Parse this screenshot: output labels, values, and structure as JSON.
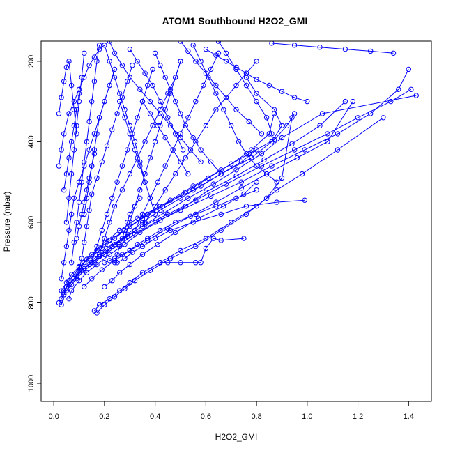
{
  "chart_data": {
    "type": "line",
    "title": "ATOM1 Southbound H2O2_GMI",
    "xlabel": "H2O2_GMI",
    "ylabel": "Pressure (mbar)",
    "xlim": [
      -0.05,
      1.49
    ],
    "ylim": [
      1045,
      150
    ],
    "y_reversed": true,
    "x_ticks": [
      0.0,
      0.2,
      0.4,
      0.6,
      0.8,
      1.0,
      1.2,
      1.4
    ],
    "x_tick_labels": [
      "0.0",
      "0.2",
      "0.4",
      "0.6",
      "0.8",
      "1.0",
      "1.2",
      "1.4"
    ],
    "y_ticks": [
      200,
      400,
      600,
      800,
      1000
    ],
    "y_tick_labels": [
      "200",
      "400",
      "600",
      "800",
      "1000"
    ],
    "grid": false,
    "legend": "none",
    "marker": "open-circle",
    "color": "#0000ff",
    "series": [
      {
        "x": [
          0.03,
          0.04,
          0.05,
          0.08,
          0.1,
          0.12,
          0.15,
          0.2,
          0.26,
          0.33,
          0.42,
          0.55,
          0.66,
          0.78,
          0.86,
          0.9,
          0.87,
          0.8,
          0.76
        ],
        "y": [
          805,
          780,
          760,
          740,
          720,
          700,
          680,
          650,
          620,
          590,
          560,
          520,
          480,
          440,
          400,
          360,
          320,
          280,
          240
        ]
      },
      {
        "x": [
          0.04,
          0.06,
          0.09,
          0.12,
          0.16,
          0.21,
          0.27,
          0.35,
          0.45,
          0.56,
          0.68,
          0.82,
          0.95,
          1.08,
          1.2,
          1.33,
          1.41
        ],
        "y": [
          770,
          755,
          735,
          715,
          690,
          665,
          640,
          610,
          580,
          545,
          505,
          460,
          420,
          380,
          340,
          300,
          270
        ]
      },
      {
        "x": [
          0.05,
          0.08,
          0.11,
          0.15,
          0.2,
          0.26,
          0.32,
          0.4,
          0.5,
          0.62,
          0.74,
          0.86,
          0.99,
          1.12,
          1.25,
          1.36,
          1.4
        ],
        "y": [
          760,
          740,
          720,
          700,
          680,
          655,
          630,
          600,
          570,
          535,
          500,
          460,
          420,
          380,
          330,
          270,
          220
        ]
      },
      {
        "x": [
          0.06,
          0.07,
          0.1,
          0.13,
          0.17,
          0.22,
          0.28,
          0.34,
          0.42,
          0.52,
          0.6,
          0.72,
          0.83,
          0.94,
          1.05,
          1.15
        ],
        "y": [
          790,
          770,
          745,
          725,
          705,
          680,
          655,
          625,
          595,
          560,
          525,
          485,
          445,
          405,
          360,
          300
        ]
      },
      {
        "x": [
          0.08,
          0.1,
          0.14,
          0.18,
          0.23,
          0.29,
          0.36,
          0.44,
          0.53,
          0.63,
          0.72,
          0.82,
          0.9,
          1.06,
          1.43
        ],
        "y": [
          740,
          725,
          705,
          685,
          660,
          635,
          605,
          575,
          540,
          505,
          470,
          430,
          390,
          330,
          285
        ]
      },
      {
        "x": [
          0.16,
          0.18,
          0.22,
          0.26,
          0.3,
          0.35,
          0.42,
          0.5,
          0.6,
          0.7,
          0.8,
          0.88,
          0.98,
          1.12,
          1.3
        ],
        "y": [
          820,
          805,
          790,
          770,
          750,
          725,
          700,
          670,
          640,
          600,
          560,
          520,
          480,
          420,
          340
        ]
      },
      {
        "x": [
          0.03,
          0.05,
          0.07,
          0.1,
          0.14,
          0.19,
          0.24,
          0.3,
          0.37,
          0.46,
          0.55,
          0.66,
          0.77,
          0.87,
          0.92,
          0.95
        ],
        "y": [
          770,
          750,
          730,
          710,
          690,
          665,
          640,
          610,
          580,
          545,
          510,
          470,
          430,
          395,
          360,
          330
        ]
      },
      {
        "x": [
          0.12,
          0.15,
          0.19,
          0.24,
          0.3,
          0.37,
          0.45,
          0.54,
          0.64,
          0.74,
          0.84,
          0.96,
          1.08,
          1.18
        ],
        "y": [
          760,
          740,
          718,
          695,
          670,
          645,
          615,
          585,
          550,
          515,
          480,
          440,
          400,
          300
        ]
      },
      {
        "x": [
          0.17,
          0.2,
          0.24,
          0.28,
          0.32,
          0.38,
          0.46,
          0.56,
          0.66,
          0.76,
          0.84,
          0.9,
          0.94
        ],
        "y": [
          825,
          805,
          785,
          765,
          745,
          720,
          690,
          660,
          620,
          580,
          540,
          490,
          340
        ]
      },
      {
        "x": [
          0.04,
          0.05,
          0.06,
          0.08,
          0.1,
          0.13,
          0.17,
          0.22,
          0.28,
          0.35,
          0.43,
          0.52,
          0.61,
          0.7,
          0.78,
          0.85,
          0.87
        ],
        "y": [
          775,
          760,
          745,
          730,
          712,
          692,
          670,
          645,
          620,
          590,
          560,
          525,
          490,
          455,
          420,
          380,
          330
        ]
      },
      {
        "x": [
          0.2,
          0.23,
          0.26,
          0.3,
          0.35,
          0.41,
          0.48,
          0.57,
          0.67,
          0.75,
          0.8
        ],
        "y": [
          760,
          745,
          725,
          705,
          680,
          655,
          625,
          590,
          560,
          530,
          500
        ]
      },
      {
        "x": [
          0.25,
          0.28,
          0.31,
          0.35,
          0.4,
          0.46,
          0.55,
          0.66,
          0.76,
          0.88,
          0.99
        ],
        "y": [
          700,
          690,
          675,
          660,
          640,
          620,
          600,
          580,
          560,
          550,
          545
        ]
      },
      {
        "x": [
          0.42,
          0.45,
          0.5,
          0.56,
          0.58,
          0.6,
          0.63,
          0.66,
          0.75
        ],
        "y": [
          700,
          700,
          700,
          700,
          700,
          665,
          640,
          645,
          640
        ]
      },
      {
        "x": [
          0.2,
          0.22,
          0.24,
          0.27,
          0.3,
          0.33,
          0.37,
          0.42,
          0.48,
          0.56,
          0.64,
          0.72,
          0.8
        ],
        "y": [
          700,
          695,
          690,
          680,
          670,
          655,
          640,
          620,
          600,
          580,
          560,
          540,
          520
        ]
      },
      {
        "x": [
          0.02,
          0.03,
          0.04,
          0.05,
          0.07,
          0.09,
          0.12,
          0.16,
          0.2,
          0.24,
          0.29,
          0.35,
          0.42,
          0.5,
          0.58,
          0.66,
          0.74,
          0.8
        ],
        "y": [
          800,
          790,
          780,
          770,
          755,
          740,
          720,
          700,
          680,
          655,
          630,
          600,
          570,
          540,
          510,
          480,
          450,
          420
        ]
      },
      {
        "x": [
          0.02,
          0.03,
          0.04,
          0.06,
          0.08,
          0.1,
          0.12,
          0.14,
          0.16,
          0.18,
          0.2,
          0.22,
          0.24,
          0.26,
          0.28,
          0.3,
          0.32,
          0.34,
          0.36
        ],
        "y": [
          460,
          420,
          380,
          330,
          300,
          270,
          240,
          210,
          190,
          170,
          160,
          200,
          240,
          280,
          320,
          360,
          400,
          450,
          500
        ]
      },
      {
        "x": [
          0.03,
          0.04,
          0.05,
          0.06,
          0.07,
          0.08,
          0.1,
          0.12,
          0.14,
          0.16,
          0.18,
          0.2,
          0.22,
          0.24
        ],
        "y": [
          740,
          700,
          660,
          620,
          580,
          540,
          500,
          460,
          420,
          380,
          340,
          300,
          260,
          220
        ]
      },
      {
        "x": [
          0.07,
          0.08,
          0.09,
          0.1,
          0.11,
          0.12,
          0.13,
          0.14,
          0.15,
          0.16,
          0.17,
          0.18
        ],
        "y": [
          700,
          650,
          600,
          550,
          500,
          450,
          400,
          350,
          300,
          250,
          200,
          160
        ]
      },
      {
        "x": [
          0.1,
          0.11,
          0.12,
          0.13,
          0.14,
          0.15,
          0.17,
          0.19,
          0.21,
          0.23,
          0.25,
          0.27,
          0.29,
          0.31
        ],
        "y": [
          720,
          690,
          650,
          610,
          570,
          530,
          490,
          450,
          410,
          370,
          330,
          290,
          250,
          210
        ]
      },
      {
        "x": [
          0.15,
          0.17,
          0.19,
          0.21,
          0.23,
          0.25,
          0.27,
          0.29,
          0.31,
          0.33,
          0.35,
          0.37,
          0.39
        ],
        "y": [
          700,
          660,
          620,
          580,
          540,
          500,
          460,
          420,
          380,
          340,
          300,
          260,
          220
        ]
      },
      {
        "x": [
          0.18,
          0.2,
          0.22,
          0.24,
          0.27,
          0.3,
          0.33,
          0.36,
          0.39,
          0.42,
          0.45,
          0.48,
          0.5
        ],
        "y": [
          680,
          640,
          600,
          560,
          520,
          480,
          440,
          400,
          360,
          320,
          280,
          240,
          200
        ]
      },
      {
        "x": [
          0.28,
          0.3,
          0.32,
          0.34,
          0.36,
          0.38,
          0.4,
          0.42,
          0.44,
          0.46,
          0.48,
          0.5
        ],
        "y": [
          640,
          600,
          560,
          520,
          480,
          440,
          400,
          360,
          320,
          280,
          240,
          200
        ]
      },
      {
        "x": [
          0.32,
          0.35,
          0.38,
          0.41,
          0.44,
          0.47,
          0.5,
          0.53,
          0.56,
          0.59,
          0.62,
          0.65
        ],
        "y": [
          620,
          580,
          540,
          500,
          460,
          420,
          380,
          340,
          300,
          260,
          220,
          180
        ]
      },
      {
        "x": [
          0.36,
          0.4,
          0.44,
          0.48,
          0.52,
          0.56,
          0.6,
          0.64,
          0.68,
          0.72,
          0.76,
          0.8
        ],
        "y": [
          600,
          560,
          520,
          480,
          440,
          400,
          360,
          320,
          290,
          260,
          230,
          200
        ]
      },
      {
        "x": [
          0.05,
          0.06,
          0.07,
          0.08,
          0.09,
          0.1,
          0.11,
          0.12
        ],
        "y": [
          600,
          540,
          480,
          420,
          360,
          300,
          240,
          180
        ]
      },
      {
        "x": [
          0.02,
          0.03,
          0.04,
          0.05,
          0.06,
          0.07,
          0.08,
          0.09
        ],
        "y": [
          330,
          290,
          250,
          215,
          200,
          260,
          320,
          380
        ]
      },
      {
        "x": [
          0.12,
          0.13,
          0.14,
          0.15,
          0.16,
          0.17,
          0.18,
          0.2,
          0.22
        ],
        "y": [
          580,
          540,
          500,
          460,
          420,
          380,
          340,
          300,
          260
        ]
      },
      {
        "x": [
          0.4,
          0.42,
          0.44,
          0.46,
          0.48,
          0.5,
          0.52,
          0.55,
          0.58,
          0.62,
          0.66
        ],
        "y": [
          180,
          210,
          240,
          270,
          300,
          330,
          360,
          390,
          420,
          450,
          480
        ]
      },
      {
        "x": [
          0.55,
          0.58,
          0.61,
          0.64,
          0.67,
          0.7,
          0.73,
          0.76,
          0.8,
          0.84,
          0.88
        ],
        "y": [
          160,
          200,
          240,
          280,
          320,
          360,
          400,
          430,
          460,
          480,
          500
        ]
      },
      {
        "x": [
          0.65,
          0.68,
          0.72,
          0.76,
          0.8,
          0.84,
          0.86
        ],
        "y": [
          150,
          180,
          220,
          260,
          300,
          340,
          380
        ]
      },
      {
        "x": [
          0.22,
          0.24,
          0.27,
          0.3,
          0.34,
          0.38,
          0.42,
          0.46,
          0.5,
          0.54,
          0.58
        ],
        "y": [
          150,
          180,
          210,
          240,
          270,
          300,
          330,
          360,
          390,
          420,
          450
        ]
      },
      {
        "x": [
          0.3,
          0.33,
          0.36,
          0.39,
          0.42,
          0.45,
          0.48,
          0.51
        ],
        "y": [
          170,
          200,
          230,
          260,
          300,
          340,
          380,
          420
        ]
      },
      {
        "x": [
          0.5,
          0.53,
          0.56,
          0.6,
          0.64,
          0.68,
          0.72,
          0.77,
          0.82
        ],
        "y": [
          150,
          175,
          200,
          230,
          260,
          290,
          320,
          350,
          380
        ]
      },
      {
        "x": [
          0.86,
          0.95,
          1.05,
          1.15,
          1.25,
          1.34
        ],
        "y": [
          155,
          160,
          165,
          170,
          175,
          180
        ]
      },
      {
        "x": [
          0.6,
          0.64,
          0.68,
          0.72,
          0.76,
          0.8,
          0.85,
          0.9,
          0.95,
          1.0
        ],
        "y": [
          170,
          185,
          200,
          215,
          230,
          245,
          260,
          275,
          290,
          300
        ]
      },
      {
        "x": [
          0.35,
          0.38,
          0.41,
          0.44,
          0.47,
          0.5,
          0.53
        ],
        "y": [
          300,
          330,
          360,
          390,
          420,
          450,
          480
        ]
      },
      {
        "x": [
          0.26,
          0.28,
          0.3,
          0.32,
          0.34,
          0.36,
          0.38,
          0.4
        ],
        "y": [
          300,
          340,
          380,
          420,
          460,
          500,
          540,
          580
        ]
      },
      {
        "x": [
          0.24,
          0.25,
          0.26,
          0.27,
          0.28,
          0.29,
          0.3,
          0.32,
          0.34
        ],
        "y": [
          700,
          680,
          660,
          640,
          620,
          600,
          580,
          560,
          540
        ]
      },
      {
        "x": [
          0.04,
          0.05,
          0.06,
          0.07,
          0.08,
          0.09,
          0.1
        ],
        "y": [
          520,
          480,
          440,
          400,
          360,
          320,
          280
        ]
      },
      {
        "x": [
          0.09,
          0.1,
          0.11,
          0.12,
          0.13,
          0.14,
          0.15,
          0.16
        ],
        "y": [
          640,
          610,
          580,
          550,
          520,
          490,
          460,
          430
        ]
      }
    ]
  }
}
